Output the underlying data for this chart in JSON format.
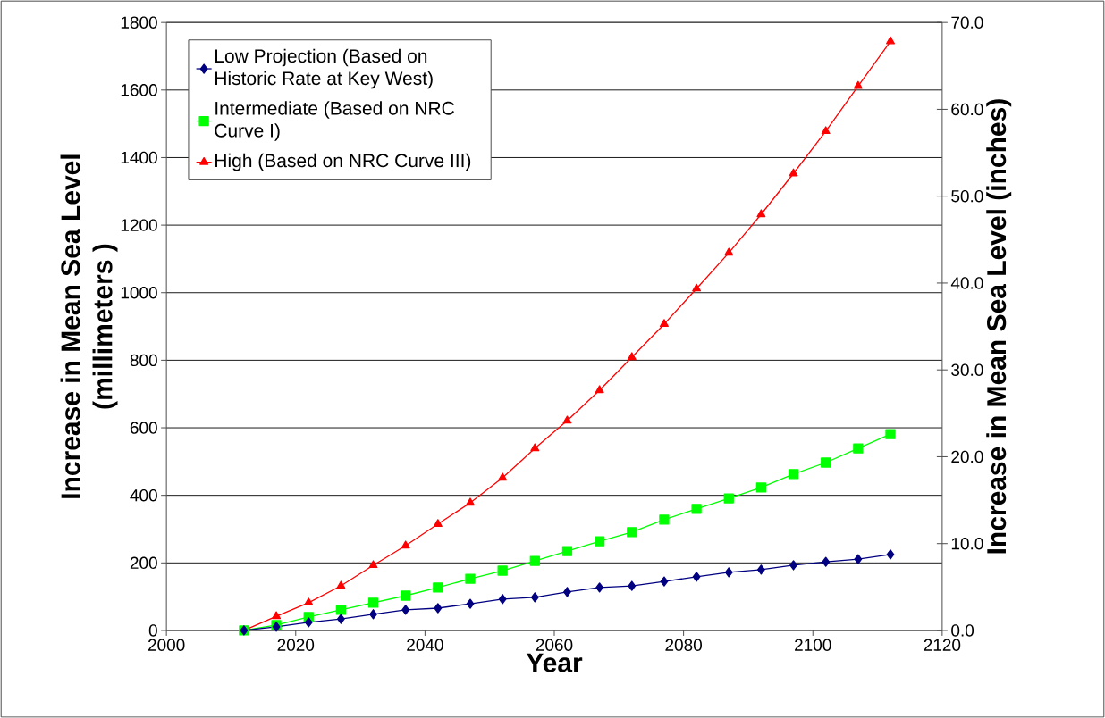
{
  "chart_data": {
    "type": "line",
    "xlabel": "Year",
    "ylabel": "Increase in Mean Sea Level (millimeters )",
    "y2label": "Increase in Mean Sea Level (inches)",
    "x": [
      2012,
      2017,
      2022,
      2027,
      2032,
      2037,
      2042,
      2047,
      2052,
      2057,
      2062,
      2067,
      2072,
      2077,
      2082,
      2087,
      2092,
      2097,
      2102,
      2107,
      2112
    ],
    "series": [
      {
        "name": "Low Projection (Based on Historic Rate at Key West)",
        "color": "#000080",
        "marker": "diamond",
        "values": [
          0,
          11,
          24,
          34,
          48,
          61,
          66,
          79,
          93,
          98,
          114,
          127,
          132,
          145,
          159,
          172,
          180,
          193,
          203,
          211,
          225
        ]
      },
      {
        "name": "Intermediate (Based on NRC Curve I)",
        "color": "#00ff00",
        "marker": "square",
        "values": [
          0,
          16,
          40,
          61,
          82,
          103,
          127,
          153,
          177,
          206,
          235,
          264,
          291,
          328,
          360,
          391,
          423,
          463,
          497,
          539,
          581
        ]
      },
      {
        "name": "High (Based on NRC Curve III)",
        "color": "#ff0000",
        "marker": "triangle",
        "values": [
          0,
          42,
          82,
          132,
          193,
          251,
          315,
          378,
          452,
          539,
          621,
          711,
          809,
          907,
          1012,
          1118,
          1232,
          1353,
          1478,
          1612,
          1744
        ]
      }
    ],
    "xlim": [
      2000,
      2120
    ],
    "xticks": [
      2000,
      2020,
      2040,
      2060,
      2080,
      2100,
      2120
    ],
    "ylim": [
      0,
      1800
    ],
    "yticks": [
      0,
      200,
      400,
      600,
      800,
      1000,
      1200,
      1400,
      1600,
      1800
    ],
    "y2lim": [
      0,
      70
    ],
    "y2ticks": [
      {
        "value": 0,
        "label": "0.0"
      },
      {
        "value": 10,
        "label": "10.0"
      },
      {
        "value": 20,
        "label": "20.0"
      },
      {
        "value": 30,
        "label": "30.0"
      },
      {
        "value": 40,
        "label": "40.0"
      },
      {
        "value": 50,
        "label": "50.0"
      },
      {
        "value": 60,
        "label": "60.0"
      },
      {
        "value": 70,
        "label": "70.0"
      }
    ],
    "grid": "y",
    "legend": "top left"
  }
}
